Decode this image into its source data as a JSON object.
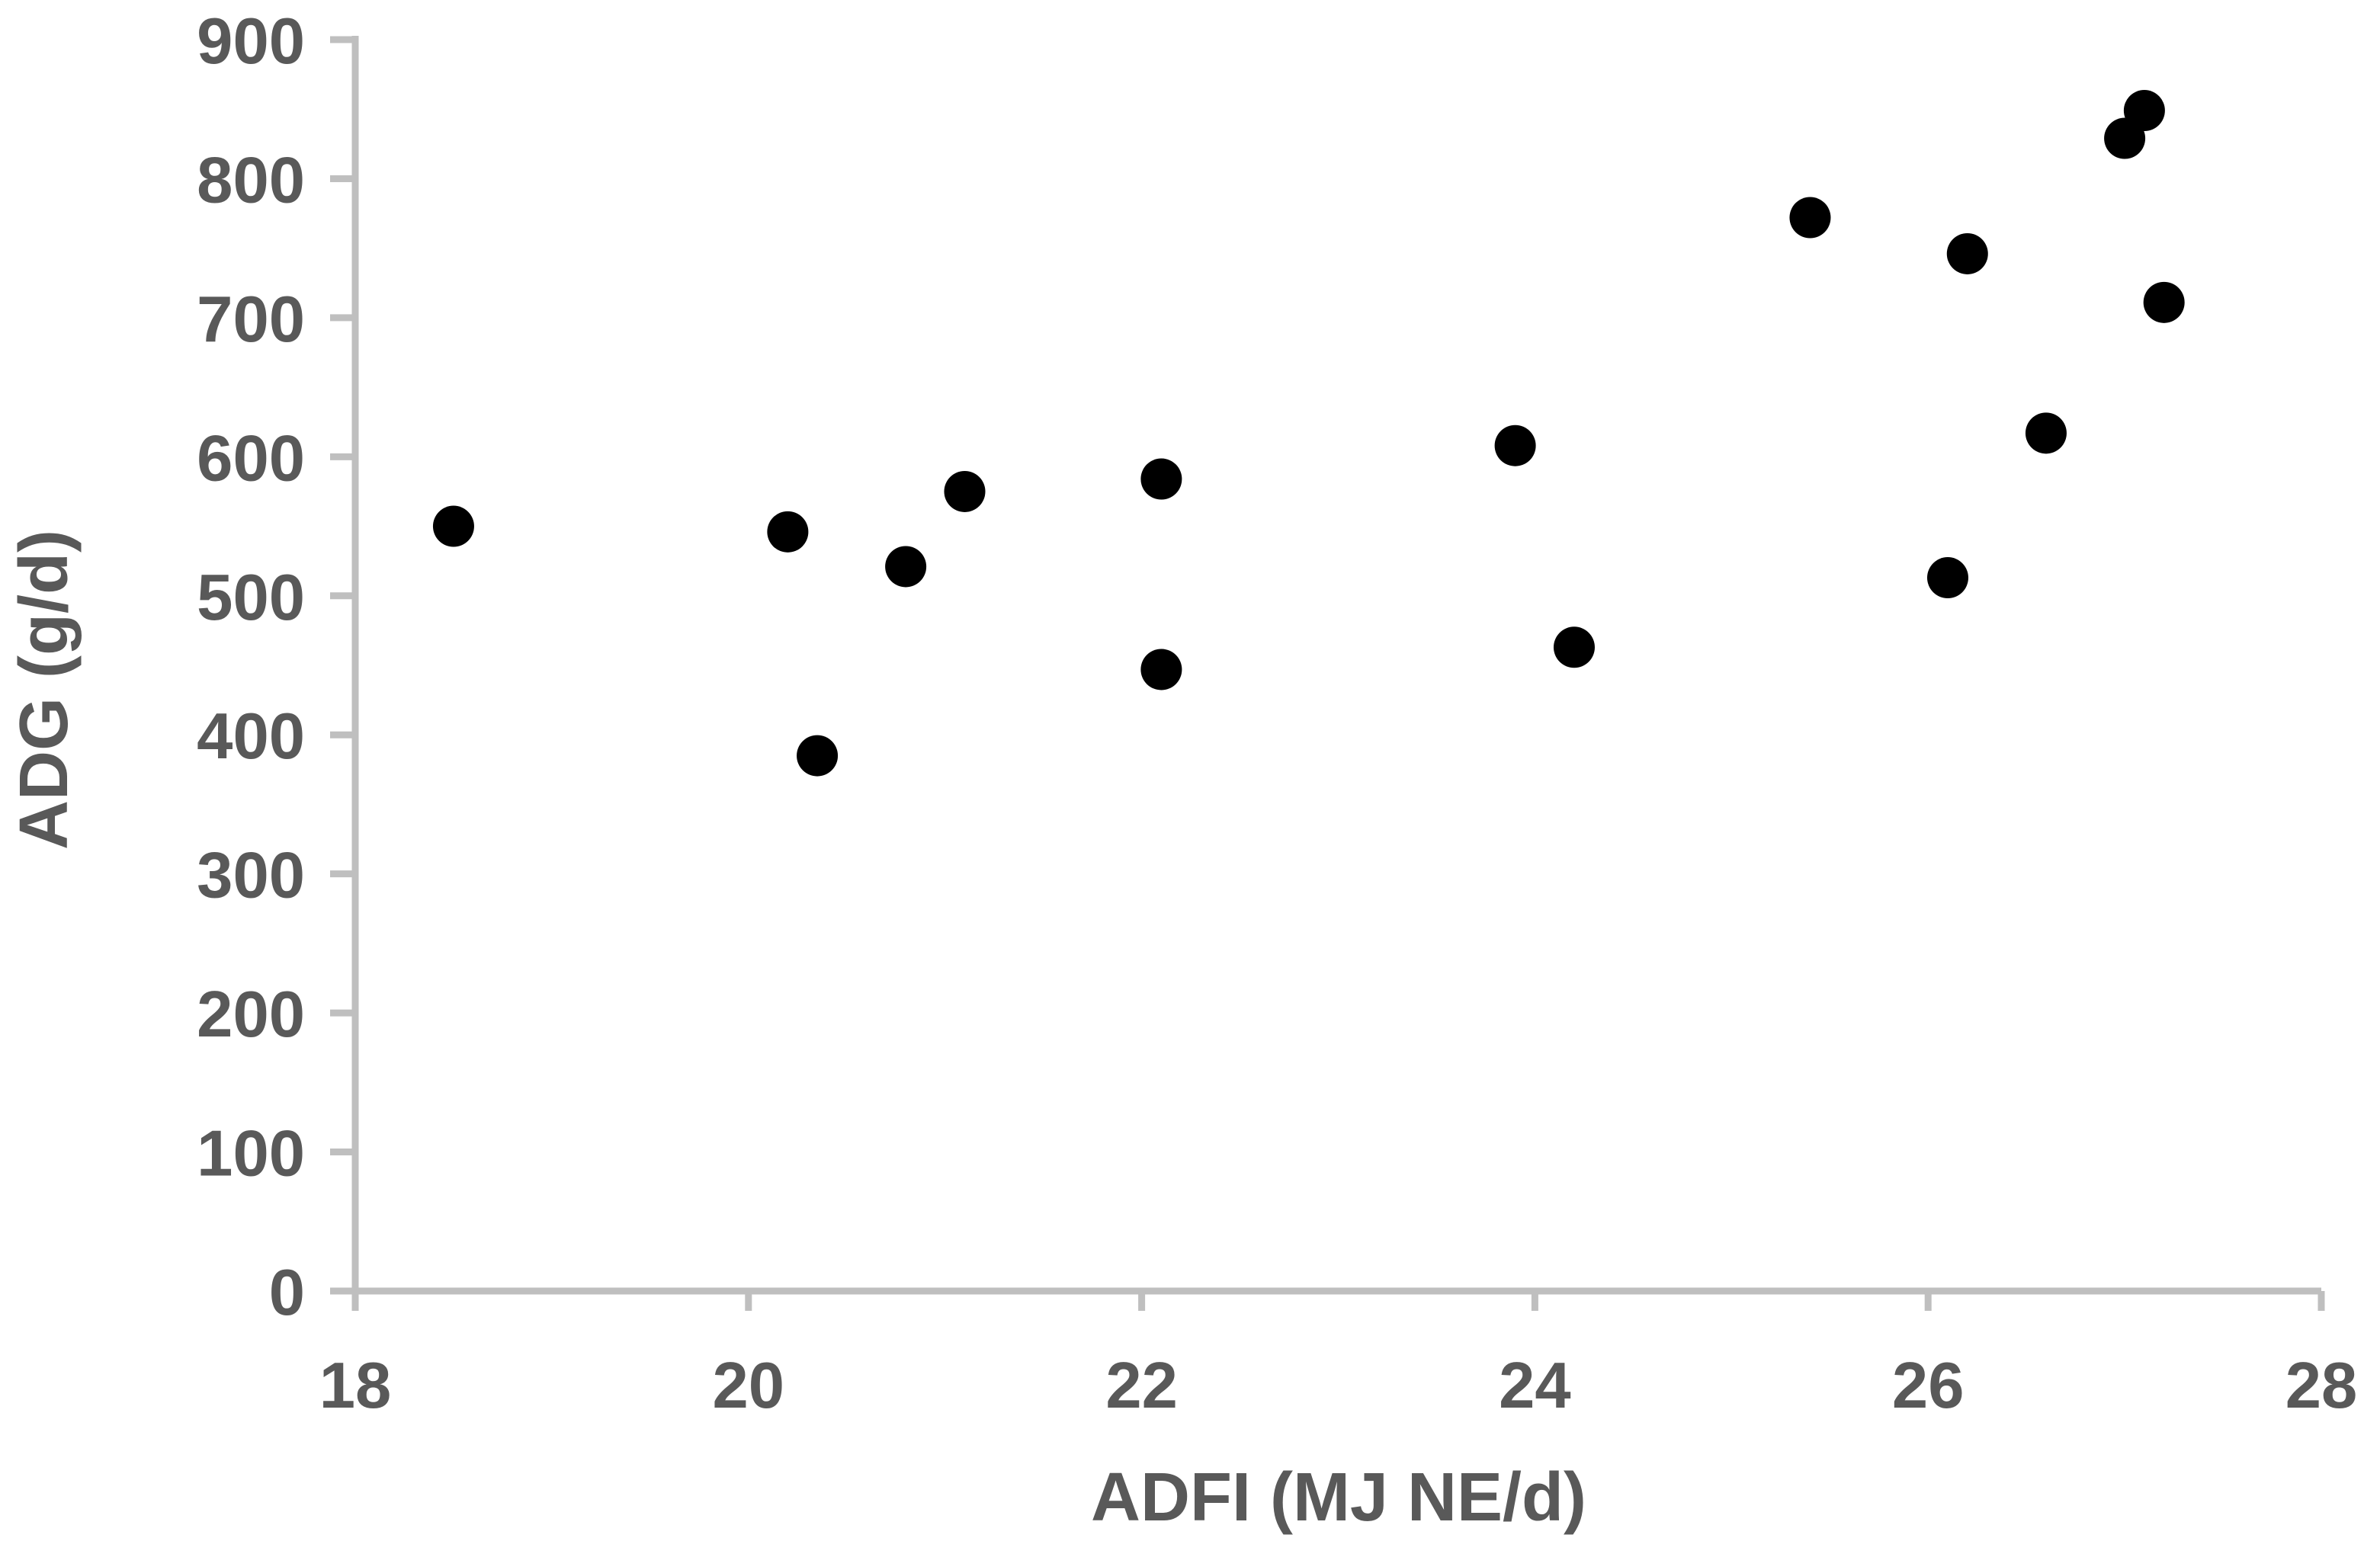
{
  "chart_data": {
    "type": "scatter",
    "title": "",
    "xlabel": "ADFI (MJ NE/d)",
    "ylabel": "ADG (g/d)",
    "xlim": [
      18,
      28
    ],
    "ylim": [
      0,
      900
    ],
    "x_ticks": [
      18,
      20,
      22,
      24,
      26,
      28
    ],
    "y_ticks": [
      0,
      100,
      200,
      300,
      400,
      500,
      600,
      700,
      800,
      900
    ],
    "grid": false,
    "legend": false,
    "marker": "filled-circle",
    "colors": {
      "marker": "#000000",
      "axis_line": "#bfbfbf",
      "label_text": "#595959",
      "background": "#ffffff"
    },
    "points": [
      {
        "x": 18.5,
        "y": 550
      },
      {
        "x": 20.2,
        "y": 546
      },
      {
        "x": 20.35,
        "y": 385
      },
      {
        "x": 20.8,
        "y": 521
      },
      {
        "x": 21.1,
        "y": 575
      },
      {
        "x": 22.1,
        "y": 584
      },
      {
        "x": 22.1,
        "y": 447
      },
      {
        "x": 23.9,
        "y": 608
      },
      {
        "x": 24.2,
        "y": 463
      },
      {
        "x": 25.4,
        "y": 772
      },
      {
        "x": 26.1,
        "y": 513
      },
      {
        "x": 26.2,
        "y": 746
      },
      {
        "x": 26.6,
        "y": 617
      },
      {
        "x": 27.0,
        "y": 829
      },
      {
        "x": 27.1,
        "y": 849
      },
      {
        "x": 27.2,
        "y": 711
      }
    ]
  }
}
